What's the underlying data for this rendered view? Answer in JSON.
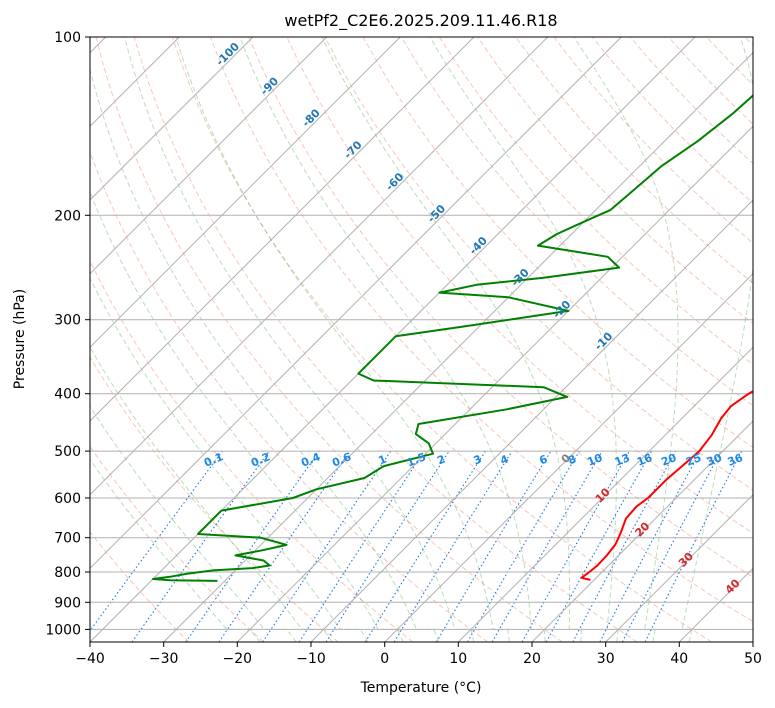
{
  "chart_data": {
    "type": "line",
    "title": "wetPf2_C2E6.2025.209.11.46.R18",
    "xlabel": "Temperature (°C)",
    "ylabel": "Pressure (hPa)",
    "xlim": [
      -40,
      50
    ],
    "ylim": [
      1050,
      100
    ],
    "y_scale": "log",
    "grid": true,
    "x_ticks": [
      -40,
      -30,
      -20,
      -10,
      0,
      10,
      20,
      30,
      40,
      50
    ],
    "x_tick_labels": [
      "−40",
      "−30",
      "−20",
      "−10",
      "0",
      "10",
      "20",
      "30",
      "40",
      "50"
    ],
    "y_ticks": [
      100,
      200,
      300,
      400,
      500,
      600,
      700,
      800,
      900,
      1000
    ],
    "y_tick_labels": [
      "100",
      "200",
      "300",
      "400",
      "500",
      "600",
      "700",
      "800",
      "900",
      "1000"
    ],
    "isotherm_labels": [
      "-100",
      "-90",
      "-80",
      "-70",
      "-60",
      "-50",
      "-40",
      "-30",
      "-20",
      "-10",
      "0",
      "10",
      "20",
      "30",
      "40"
    ],
    "mixing_ratio_labels": [
      "0.1",
      "0.2",
      "0.4",
      "0.6",
      "1",
      "1.5",
      "2",
      "3",
      "4",
      "6",
      "8",
      "10",
      "13",
      "16",
      "20",
      "25",
      "30",
      "36"
    ],
    "series": [
      {
        "color": "#ff0000",
        "points": [
          [
            825,
            19.5
          ],
          [
            818,
            18.0
          ],
          [
            800,
            18.3
          ],
          [
            780,
            18.5
          ],
          [
            750,
            18.4
          ],
          [
            720,
            18.1
          ],
          [
            700,
            17.6
          ],
          [
            680,
            17.0
          ],
          [
            650,
            16.0
          ],
          [
            620,
            15.8
          ],
          [
            600,
            16.2
          ],
          [
            560,
            16.2
          ],
          [
            530,
            16.5
          ],
          [
            500,
            16.8
          ],
          [
            470,
            16.3
          ],
          [
            440,
            15.3
          ],
          [
            420,
            15.0
          ],
          [
            400,
            15.7
          ],
          [
            385,
            16.8
          ],
          [
            370,
            16.6
          ],
          [
            350,
            15.8
          ],
          [
            330,
            15.4
          ],
          [
            310,
            15.0
          ],
          [
            290,
            14.9
          ],
          [
            270,
            14.9
          ],
          [
            250,
            15.1
          ],
          [
            230,
            15.1
          ],
          [
            210,
            14.6
          ],
          [
            190,
            13.8
          ],
          [
            170,
            12.8
          ],
          [
            155,
            11.5
          ],
          [
            140,
            9.9
          ],
          [
            128,
            8.6
          ],
          [
            118,
            7.6
          ],
          [
            110,
            7.3
          ],
          [
            104,
            7.6
          ],
          [
            100,
            8.2
          ]
        ]
      },
      {
        "color": "#008000",
        "points": [
          [
            828,
            -31.0
          ],
          [
            826,
            -37.5
          ],
          [
            822,
            -40.0
          ],
          [
            815,
            -38.0
          ],
          [
            805,
            -36.0
          ],
          [
            795,
            -33.0
          ],
          [
            788,
            -28.0
          ],
          [
            780,
            -26.0
          ],
          [
            765,
            -27.5
          ],
          [
            750,
            -32.0
          ],
          [
            735,
            -29.0
          ],
          [
            720,
            -26.5
          ],
          [
            700,
            -31.0
          ],
          [
            690,
            -40.0
          ],
          [
            630,
            -40.0
          ],
          [
            600,
            -32.0
          ],
          [
            580,
            -30.0
          ],
          [
            555,
            -25.0
          ],
          [
            530,
            -24.0
          ],
          [
            505,
            -19.0
          ],
          [
            485,
            -21.0
          ],
          [
            468,
            -24.0
          ],
          [
            450,
            -25.0
          ],
          [
            425,
            -15.0
          ],
          [
            405,
            -8.5
          ],
          [
            390,
            -13.0
          ],
          [
            380,
            -37.0
          ],
          [
            370,
            -40.0
          ],
          [
            320,
            -40.0
          ],
          [
            308,
            -32.0
          ],
          [
            290,
            -20.0
          ],
          [
            275,
            -30.0
          ],
          [
            270,
            -40.0
          ],
          [
            262,
            -36.0
          ],
          [
            255,
            -28.0
          ],
          [
            245,
            -19.0
          ],
          [
            235,
            -22.0
          ],
          [
            225,
            -33.0
          ],
          [
            215,
            -32.0
          ],
          [
            205,
            -30.0
          ],
          [
            196,
            -28.0
          ],
          [
            180,
            -27.5
          ],
          [
            165,
            -27.0
          ],
          [
            150,
            -25.5
          ],
          [
            135,
            -24.5
          ],
          [
            120,
            -24.0
          ],
          [
            112,
            -23.5
          ],
          [
            105,
            -23.0
          ],
          [
            100,
            -22.8
          ]
        ]
      }
    ]
  }
}
